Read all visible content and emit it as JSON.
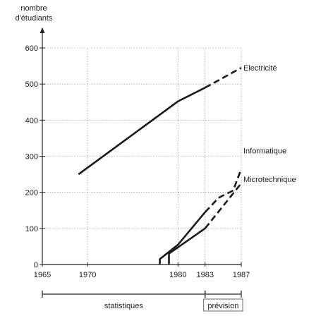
{
  "chart_data": {
    "type": "line",
    "ylabel_line1": "nombre",
    "ylabel_line2": "d'étudiants",
    "xlim": [
      1965,
      1987
    ],
    "ylim": [
      0,
      600
    ],
    "x_ticks": [
      1965,
      1970,
      1980,
      1983,
      1987
    ],
    "y_ticks": [
      0,
      100,
      200,
      300,
      400,
      500,
      600
    ],
    "grid": true,
    "series": [
      {
        "name": "Electricité",
        "points": [
          [
            1969,
            250
          ],
          [
            1980,
            452
          ],
          [
            1983,
            490
          ],
          [
            1987,
            545
          ]
        ],
        "actual_until": 1983
      },
      {
        "name": "Informatique",
        "points": [
          [
            1978,
            0
          ],
          [
            1978,
            15
          ],
          [
            1980,
            55
          ],
          [
            1983,
            145
          ],
          [
            1984.5,
            185
          ],
          [
            1986.1,
            205
          ],
          [
            1987,
            265
          ]
        ],
        "actual_until": 1983
      },
      {
        "name": "Microtechnique",
        "points": [
          [
            1979,
            0
          ],
          [
            1979,
            30
          ],
          [
            1983,
            100
          ],
          [
            1987,
            225
          ]
        ],
        "actual_until": 1983
      }
    ],
    "periods": [
      {
        "label": "statistiques",
        "from": 1965,
        "to": 1983
      },
      {
        "label": "prévision",
        "from": 1983,
        "to": 1987
      }
    ]
  }
}
